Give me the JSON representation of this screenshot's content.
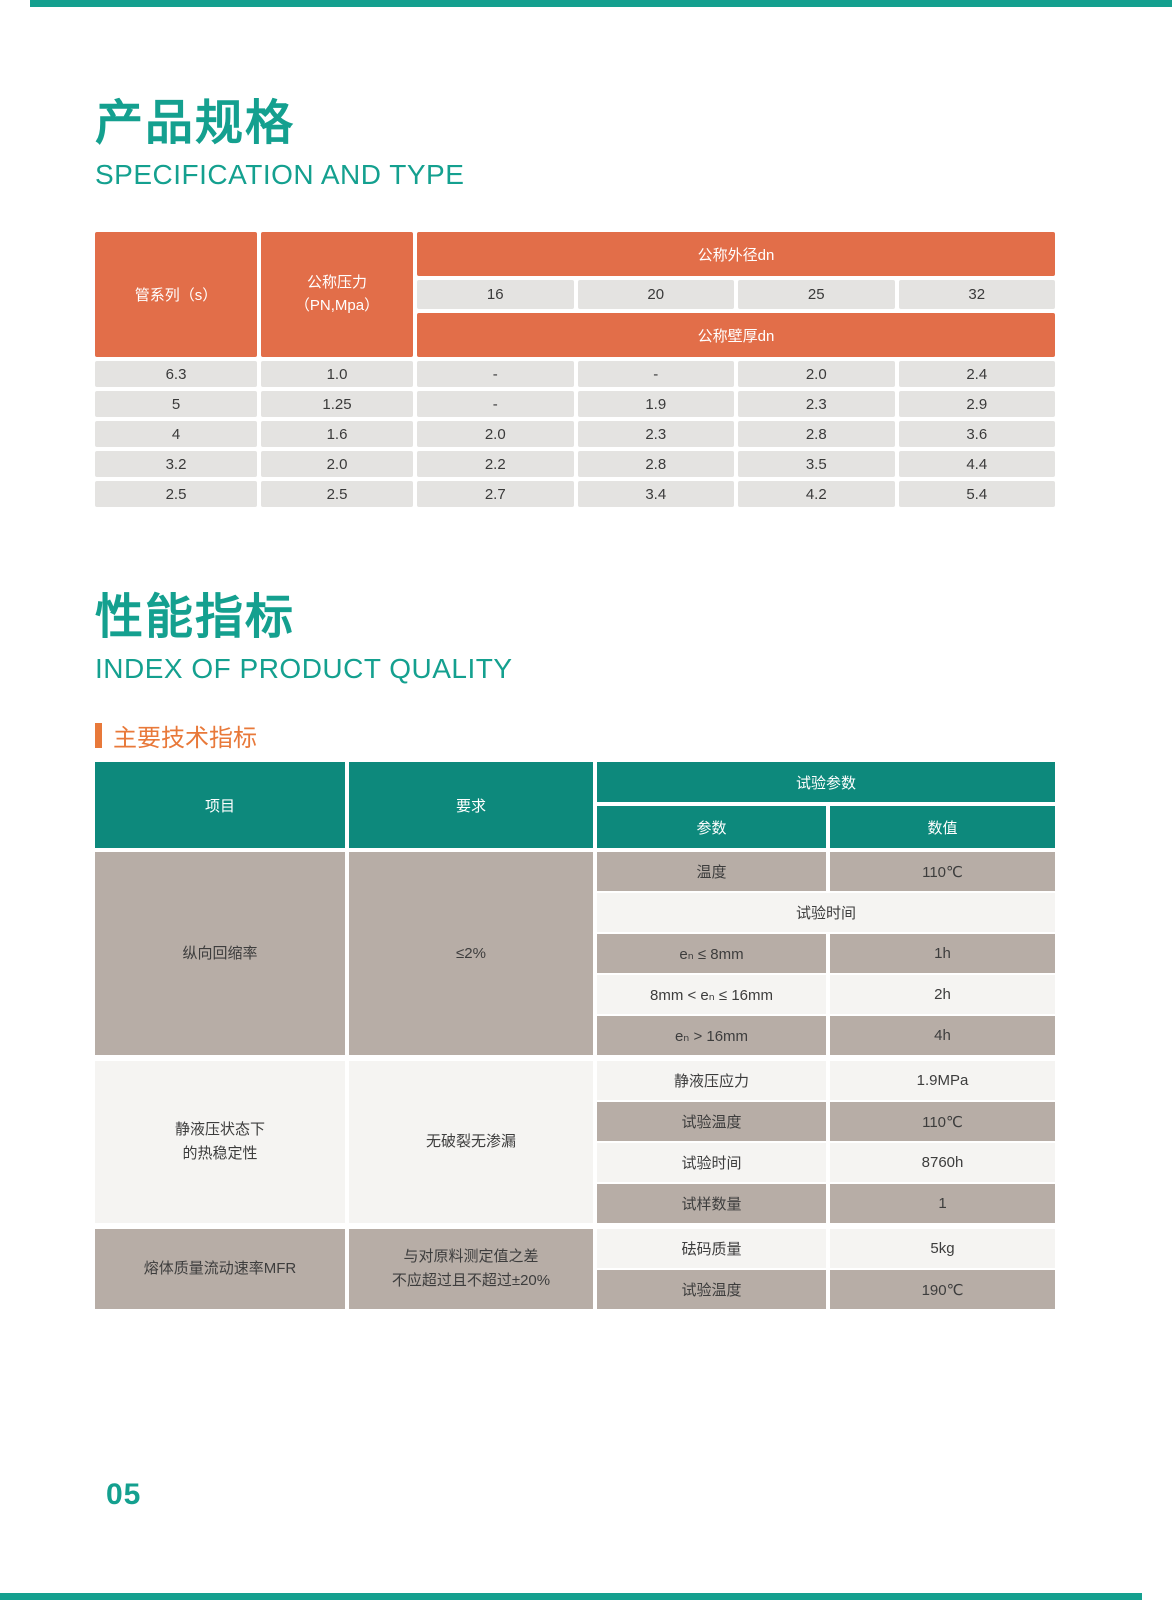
{
  "colors": {
    "teal_title": "#14A08F",
    "teal_table_header": "#0D897C",
    "orange_table_header": "#E26E49",
    "orange_accent": "#E8793A",
    "gray_cell": "#E4E3E1",
    "taupe_row": "#B7ADA6",
    "light_row": "#F5F4F2"
  },
  "page": {
    "number": "05"
  },
  "section1": {
    "title": "产品规格",
    "subtitle": "SPECIFICATION AND TYPE"
  },
  "spec_table": {
    "col1_header": "管系列（s）",
    "col2_header_line1": "公称压力",
    "col2_header_line2": "（PN,Mpa）",
    "outer_diameter_header": "公称外径dn",
    "sizes": [
      "16",
      "20",
      "25",
      "32"
    ],
    "wall_thickness_header": "公称壁厚dn",
    "rows": [
      {
        "series": "6.3",
        "pn": "1.0",
        "values": [
          "-",
          "-",
          "2.0",
          "2.4"
        ]
      },
      {
        "series": "5",
        "pn": "1.25",
        "values": [
          "-",
          "1.9",
          "2.3",
          "2.9"
        ]
      },
      {
        "series": "4",
        "pn": "1.6",
        "values": [
          "2.0",
          "2.3",
          "2.8",
          "3.6"
        ]
      },
      {
        "series": "3.2",
        "pn": "2.0",
        "values": [
          "2.2",
          "2.8",
          "3.5",
          "4.4"
        ]
      },
      {
        "series": "2.5",
        "pn": "2.5",
        "values": [
          "2.7",
          "3.4",
          "4.2",
          "5.4"
        ]
      }
    ]
  },
  "section2": {
    "title": "性能指标",
    "subtitle": "INDEX OF PRODUCT QUALITY",
    "subheader": "主要技术指标"
  },
  "quality_table": {
    "headers": {
      "item": "项目",
      "requirement": "要求",
      "test_params": "试验参数",
      "param": "参数",
      "value": "数值"
    },
    "blocks": [
      {
        "item": "纵向回缩率",
        "item2": "",
        "requirement": "≤2%",
        "requirement2": "",
        "rows": [
          {
            "param": "温度",
            "value": "110℃"
          },
          {
            "param": "试验时间",
            "value": ""
          },
          {
            "param": "eₙ ≤ 8mm",
            "value": "1h"
          },
          {
            "param": "8mm < eₙ ≤ 16mm",
            "value": "2h"
          },
          {
            "param": "eₙ > 16mm",
            "value": "4h"
          }
        ]
      },
      {
        "item": "静液压状态下",
        "item2": "的热稳定性",
        "requirement": "无破裂无渗漏",
        "requirement2": "",
        "rows": [
          {
            "param": "静液压应力",
            "value": "1.9MPa"
          },
          {
            "param": "试验温度",
            "value": "110℃"
          },
          {
            "param": "试验时间",
            "value": "8760h"
          },
          {
            "param": "试样数量",
            "value": "1"
          }
        ]
      },
      {
        "item": "熔体质量流动速率MFR",
        "item2": "",
        "requirement": "与对原料测定值之差",
        "requirement2": "不应超过且不超过±20%",
        "rows": [
          {
            "param": "砝码质量",
            "value": "5kg"
          },
          {
            "param": "试验温度",
            "value": "190℃"
          }
        ]
      }
    ]
  }
}
